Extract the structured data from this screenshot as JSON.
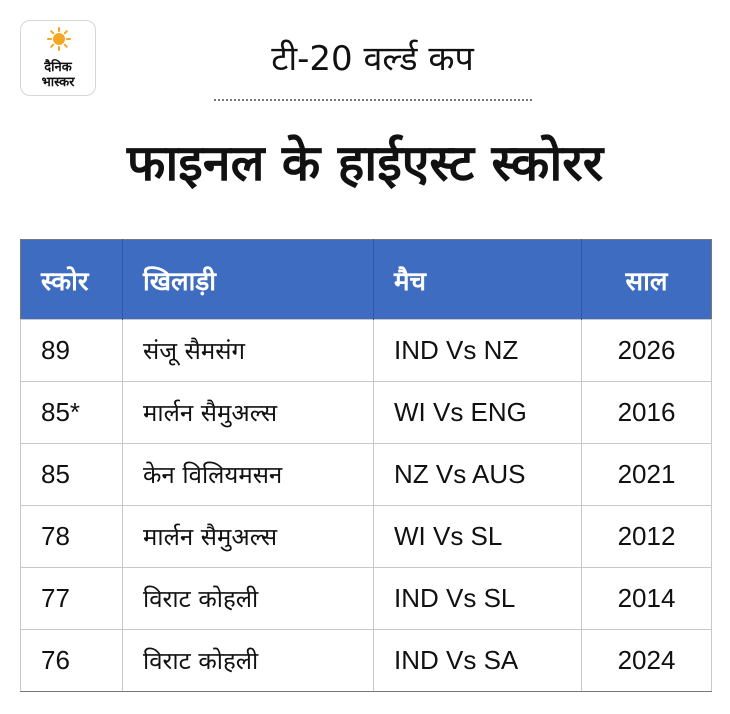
{
  "brand": {
    "line1": "दैनिक",
    "line2": "भास्कर",
    "sun_color": "#f5a623"
  },
  "kicker": "टी-20 वर्ल्ड कप",
  "headline": "फाइनल के हाईएस्ट स्कोरर",
  "table": {
    "header_color": "#3d6cc0",
    "columns": [
      "स्कोर",
      "खिलाड़ी",
      "मैच",
      "साल"
    ],
    "rows": [
      {
        "score": "89",
        "player": "संजू सैमसंग",
        "match": "IND Vs NZ",
        "year": "2026"
      },
      {
        "score": "85*",
        "player": "मार्लन सैमुअल्स",
        "match": "WI Vs ENG",
        "year": "2016"
      },
      {
        "score": "85",
        "player": "केन विलियमसन",
        "match": "NZ Vs AUS",
        "year": "2021"
      },
      {
        "score": "78",
        "player": "मार्लन सैमुअल्स",
        "match": "WI Vs SL",
        "year": "2012"
      },
      {
        "score": "77",
        "player": "विराट कोहली",
        "match": "IND Vs SL",
        "year": "2014"
      },
      {
        "score": "76",
        "player": "विराट कोहली",
        "match": "IND Vs SA",
        "year": "2024"
      }
    ]
  }
}
